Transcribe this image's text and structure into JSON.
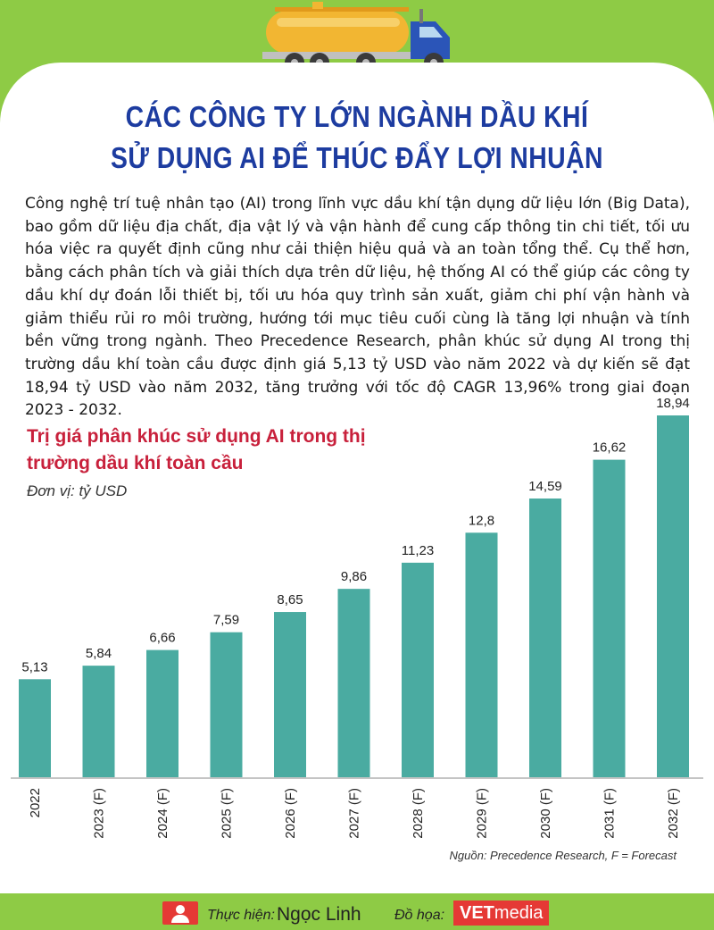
{
  "title_lines": [
    "CÁC CÔNG TY LỚN NGÀNH DẦU KHÍ",
    "SỬ DỤNG AI ĐỂ THÚC ĐẨY LỢI NHUẬN"
  ],
  "intro": "Công nghệ trí tuệ nhân tạo (AI) trong lĩnh vực dầu khí tận dụng dữ liệu lớn (Big Data), bao gồm dữ liệu địa chất, địa vật lý và vận hành để cung cấp thông tin chi tiết, tối ưu hóa việc ra quyết định cũng như cải thiện hiệu quả và an toàn tổng thể. Cụ thể hơn, bằng cách phân tích và giải thích dựa trên dữ liệu, hệ thống AI có thể giúp các công ty dầu khí dự đoán lỗi thiết bị, tối ưu hóa quy trình sản xuất, giảm chi phí vận hành và giảm thiểu rủi ro môi trường, hướng tới mục tiêu cuối cùng là tăng lợi nhuận và tính bền vững trong ngành. Theo Precedence Research, phân khúc sử dụng AI trong thị trường dầu khí toàn cầu được định giá 5,13 tỷ USD vào năm 2022 và dự kiến sẽ đạt 18,94 tỷ USD vào năm 2032, tăng trưởng với tốc độ CAGR 13,96% trong giai đoạn 2023 - 2032.",
  "chart_data": {
    "type": "bar",
    "title": "Trị giá phân khúc sử dụng AI trong thị trường dầu khí toàn cầu",
    "unit": "Đơn vị: tỷ USD",
    "categories": [
      "2022",
      "2023 (F)",
      "2024 (F)",
      "2025 (F)",
      "2026 (F)",
      "2027 (F)",
      "2028 (F)",
      "2029 (F)",
      "2030 (F)",
      "2031 (F)",
      "2032 (F)"
    ],
    "values": [
      5.13,
      5.84,
      6.66,
      7.59,
      8.65,
      9.86,
      11.23,
      12.8,
      14.59,
      16.62,
      18.94
    ],
    "value_labels": [
      "5,13",
      "5,84",
      "6,66",
      "7,59",
      "8,65",
      "9,86",
      "11,23",
      "12,8",
      "14,59",
      "16,62",
      "18,94"
    ],
    "bar_color": "#4aaba1",
    "ylim": [
      0,
      18.94
    ]
  },
  "source": "Nguồn: Precedence Research, F = Forecast",
  "footer": {
    "author_label": "Thực hiện:",
    "author_name": "Ngọc Linh",
    "graphics_label": "Đồ họa:",
    "logo_bold": "VET",
    "logo_rest": "media"
  },
  "colors": {
    "background": "#8ecb45",
    "title": "#1d3ca0",
    "chart_title": "#c8203b",
    "accent_red": "#e53935"
  }
}
